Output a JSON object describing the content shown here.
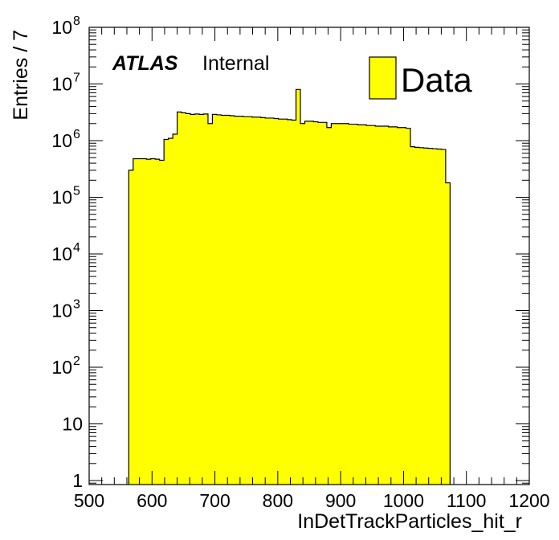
{
  "chart_data": {
    "type": "bar",
    "atlas_label": "ATLAS",
    "atlas_sublabel": "Internal",
    "xlabel": "InDetTrackParticles_hit_r",
    "ylabel": "Entries / 7",
    "xlim": [
      500,
      1200
    ],
    "ylim": [
      0.85,
      100000000
    ],
    "yscale": "log",
    "grid": false,
    "legend_position": "top-right",
    "bar_color": "#ffff00",
    "line_color": "#000000",
    "x_ticks": [
      500,
      600,
      700,
      800,
      900,
      1000,
      1100,
      1200
    ],
    "y_ticks": [
      {
        "value": 1,
        "base": "1",
        "exp": ""
      },
      {
        "value": 10,
        "base": "10",
        "exp": ""
      },
      {
        "value": 100,
        "base": "10",
        "exp": "2"
      },
      {
        "value": 1000,
        "base": "10",
        "exp": "3"
      },
      {
        "value": 10000,
        "base": "10",
        "exp": "4"
      },
      {
        "value": 100000,
        "base": "10",
        "exp": "5"
      },
      {
        "value": 1000000,
        "base": "10",
        "exp": "6"
      },
      {
        "value": 10000000,
        "base": "10",
        "exp": "7"
      },
      {
        "value": 100000000,
        "base": "10",
        "exp": "8"
      }
    ],
    "series": [
      {
        "name": "Data",
        "bin_width": 7,
        "x_start": 563,
        "values": [
          300000,
          480000,
          480000,
          480000,
          470000,
          480000,
          470000,
          450000,
          1050000,
          1100000,
          1300000,
          3200000,
          3100000,
          3000000,
          2900000,
          2950000,
          2900000,
          2950000,
          2000000,
          2900000,
          2850000,
          2800000,
          2800000,
          2750000,
          2700000,
          2700000,
          2650000,
          2650000,
          2600000,
          2600000,
          2550000,
          2500000,
          2500000,
          2450000,
          2400000,
          2400000,
          2350000,
          2300000,
          8000000,
          2000000,
          2200000,
          2200000,
          2150000,
          2100000,
          2100000,
          1700000,
          2000000,
          2000000,
          2000000,
          2000000,
          1950000,
          1950000,
          1900000,
          1900000,
          1850000,
          1850000,
          1800000,
          1800000,
          1800000,
          1750000,
          1750000,
          1700000,
          1700000,
          1650000,
          780000,
          760000,
          750000,
          740000,
          730000,
          720000,
          710000,
          700000,
          180000
        ]
      }
    ]
  }
}
